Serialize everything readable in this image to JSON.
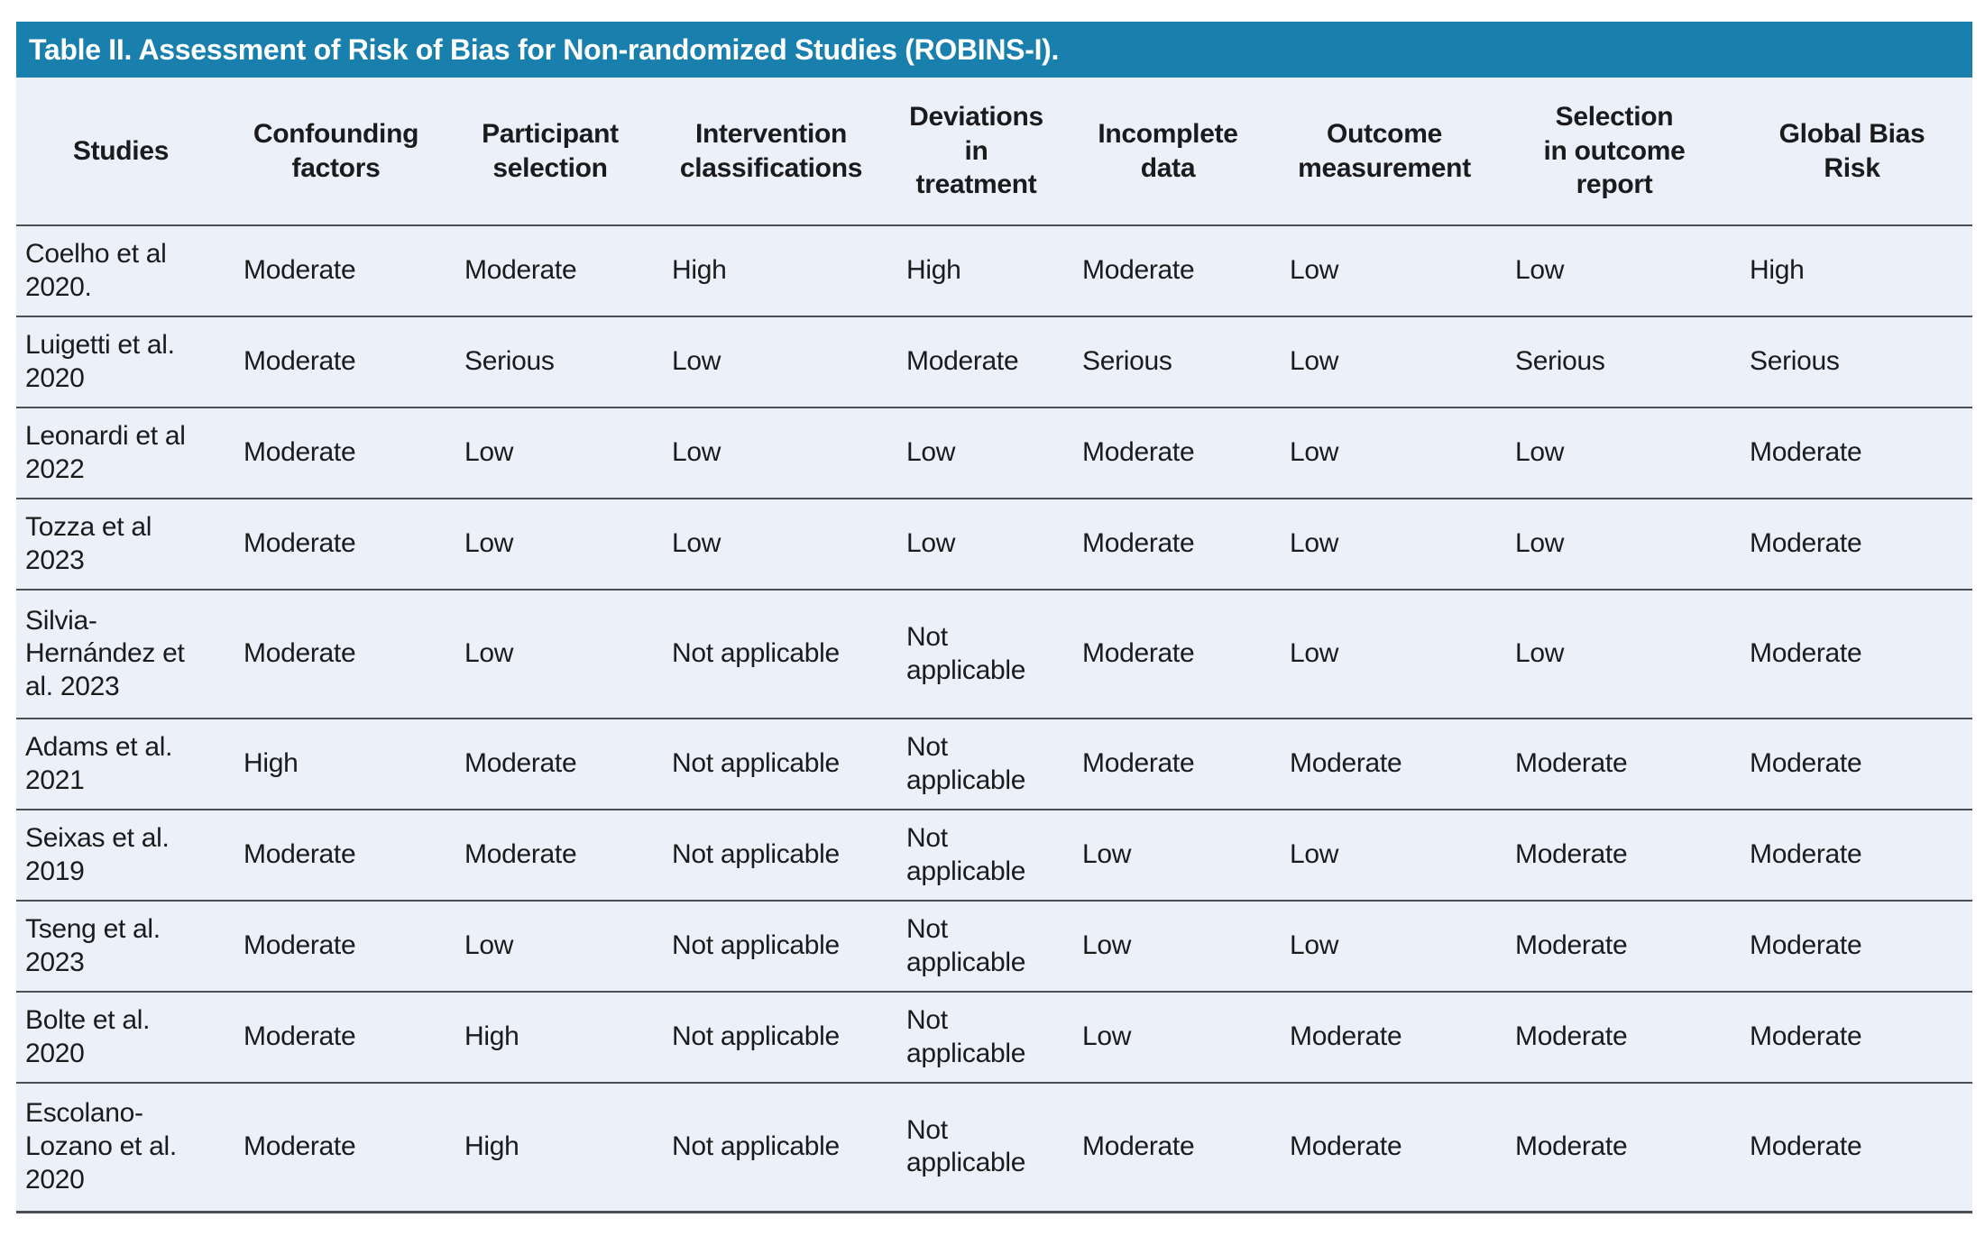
{
  "table": {
    "title": "Table II. Assessment of Risk of Bias for Non-randomized Studies (ROBINS-I).",
    "columns": [
      {
        "label": "Studies"
      },
      {
        "label": "Confounding\nfactors"
      },
      {
        "label": "Participant\nselection"
      },
      {
        "label": "Intervention\nclassifications"
      },
      {
        "label": "Deviations\nin\ntreatment"
      },
      {
        "label": "Incomplete\ndata"
      },
      {
        "label": "Outcome\nmeasurement"
      },
      {
        "label": "Selection\nin outcome\nreport"
      },
      {
        "label": "Global Bias\nRisk"
      }
    ],
    "rows": [
      {
        "study": "Coelho et al\n2020.",
        "values": [
          "Moderate",
          "Moderate",
          "High",
          "High",
          "Moderate",
          "Low",
          "Low",
          "High"
        ]
      },
      {
        "study": "Luigetti et al.\n2020",
        "values": [
          "Moderate",
          "Serious",
          "Low",
          "Moderate",
          "Serious",
          "Low",
          "Serious",
          "Serious"
        ]
      },
      {
        "study": "Leonardi et al\n2022",
        "values": [
          "Moderate",
          "Low",
          "Low",
          "Low",
          "Moderate",
          "Low",
          "Low",
          "Moderate"
        ]
      },
      {
        "study": "Tozza et al\n2023",
        "values": [
          "Moderate",
          "Low",
          "Low",
          "Low",
          "Moderate",
          "Low",
          "Low",
          "Moderate"
        ]
      },
      {
        "study": "Silvia-\nHernández et\nal. 2023",
        "values": [
          "Moderate",
          "Low",
          "Not applicable",
          "Not applicable",
          "Moderate",
          "Low",
          "Low",
          "Moderate"
        ]
      },
      {
        "study": "Adams et al.\n2021",
        "values": [
          "High",
          "Moderate",
          "Not applicable",
          "Not applicable",
          "Moderate",
          "Moderate",
          "Moderate",
          "Moderate"
        ]
      },
      {
        "study": "Seixas et al.\n2019",
        "values": [
          "Moderate",
          "Moderate",
          "Not applicable",
          "Not applicable",
          "Low",
          "Low",
          "Moderate",
          "Moderate"
        ]
      },
      {
        "study": "Tseng et al.\n2023",
        "values": [
          "Moderate",
          "Low",
          "Not applicable",
          "Not applicable",
          "Low",
          "Low",
          "Moderate",
          "Moderate"
        ]
      },
      {
        "study": "Bolte et al.\n2020",
        "values": [
          "Moderate",
          "High",
          "Not applicable",
          "Not applicable",
          "Low",
          "Moderate",
          "Moderate",
          "Moderate"
        ]
      },
      {
        "study": "Escolano-\nLozano et al.\n2020",
        "values": [
          "Moderate",
          "High",
          "Not applicable",
          "Not applicable",
          "Moderate",
          "Moderate",
          "Moderate",
          "Moderate"
        ]
      }
    ]
  },
  "colors": {
    "title_bar": "#197fad",
    "body_bg": "#ecf0f8",
    "border": "#4a4f55",
    "title_text": "#ffffff",
    "body_text": "#1b1b1d"
  }
}
